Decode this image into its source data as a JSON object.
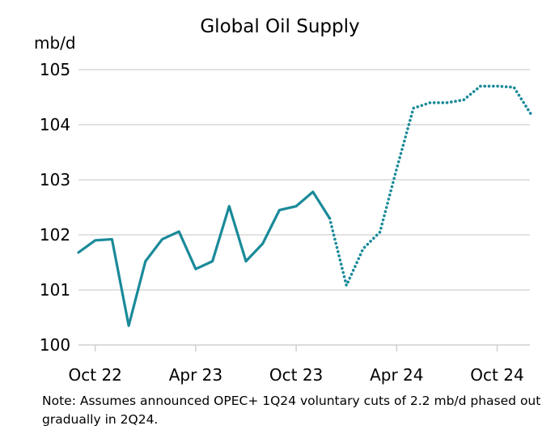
{
  "chart_data": {
    "type": "line",
    "title": "Global Oil Supply",
    "ylabel": "mb/d",
    "xlabel": "",
    "ylim": [
      100,
      105
    ],
    "yticks": [
      100,
      101,
      102,
      103,
      104,
      105
    ],
    "x_tick_labels": [
      "Oct 22",
      "Apr 23",
      "Oct 23",
      "Apr 24",
      "Oct 24"
    ],
    "x": [
      "Sep 22",
      "Oct 22",
      "Nov 22",
      "Dec 22",
      "Jan 23",
      "Feb 23",
      "Mar 23",
      "Apr 23",
      "May 23",
      "Jun 23",
      "Jul 23",
      "Aug 23",
      "Sep 23",
      "Oct 23",
      "Nov 23",
      "Dec 23",
      "Jan 24",
      "Feb 24",
      "Mar 24",
      "Apr 24",
      "May 24",
      "Jun 24",
      "Jul 24",
      "Aug 24",
      "Sep 24",
      "Oct 24",
      "Nov 24",
      "Dec 24"
    ],
    "series": [
      {
        "style": "solid",
        "x": [
          "Sep 22",
          "Oct 22",
          "Nov 22",
          "Dec 22",
          "Jan 23",
          "Feb 23",
          "Mar 23",
          "Apr 23",
          "May 23",
          "Jun 23",
          "Jul 23",
          "Aug 23",
          "Sep 23",
          "Oct 23",
          "Nov 23",
          "Dec 23"
        ],
        "values": [
          101.68,
          101.9,
          101.92,
          100.35,
          101.52,
          101.92,
          102.06,
          101.38,
          101.52,
          102.52,
          101.52,
          101.84,
          102.45,
          102.52,
          102.78,
          102.3
        ]
      },
      {
        "style": "dotted",
        "x": [
          "Dec 23",
          "Jan 24",
          "Feb 24",
          "Mar 24",
          "Apr 24",
          "May 24",
          "Jun 24",
          "Jul 24",
          "Aug 24",
          "Sep 24",
          "Oct 24",
          "Nov 24",
          "Dec 24"
        ],
        "values": [
          102.3,
          101.08,
          101.75,
          102.05,
          103.2,
          104.3,
          104.4,
          104.4,
          104.45,
          104.7,
          104.7,
          104.68,
          104.2
        ]
      }
    ],
    "colors": {
      "line": "#1a8a99",
      "grid": "#d9d9d9",
      "axis": "#d0d0d0"
    },
    "grid": true,
    "legend": "none"
  },
  "note": "Note: Assumes announced OPEC+ 1Q24 voluntary cuts of 2.2 mb/d phased out gradually in 2Q24."
}
